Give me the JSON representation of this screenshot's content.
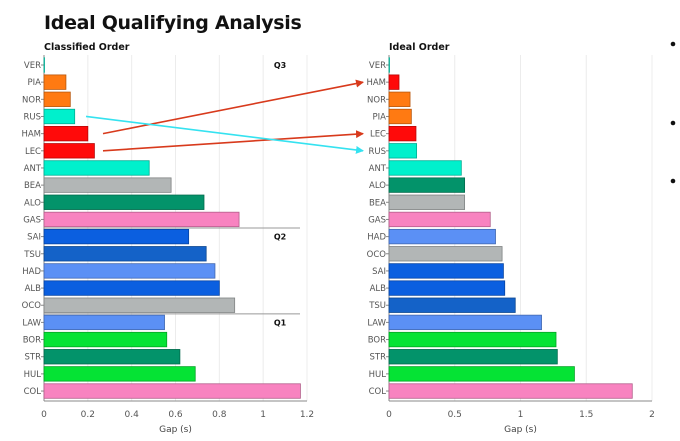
{
  "title": "Ideal Qualifying Analysis",
  "colors": {
    "orange": "#ff7a12",
    "teal": "#00f0cc",
    "red": "#ff0a0a",
    "gray": "#b2b6b6",
    "darkgreen": "#03936a",
    "pink": "#f883c0",
    "blue": "#0b5fe0",
    "darkblue": "#1462c8",
    "lightblue": "#5b90f5",
    "green": "#05e334",
    "arrow_red": "#d83a1c",
    "arrow_cyan": "#35e2f0"
  },
  "chart_data": [
    {
      "type": "bar",
      "orientation": "horizontal",
      "title": "Classified Order",
      "xlabel": "Gap (s)",
      "xlim": [
        0,
        1.2
      ],
      "xticks": [
        "0",
        "0.2",
        "0.4",
        "0.6",
        "0.8",
        "1",
        "1.2"
      ],
      "xtick_values": [
        0,
        0.2,
        0.4,
        0.6,
        0.8,
        1,
        1.2
      ],
      "grid": true,
      "categories": [
        "VER",
        "PIA",
        "NOR",
        "RUS",
        "HAM",
        "LEC",
        "ANT",
        "BEA",
        "ALO",
        "GAS",
        "SAI",
        "TSU",
        "HAD",
        "ALB",
        "OCO",
        "LAW",
        "BOR",
        "STR",
        "HUL",
        "COL"
      ],
      "values": [
        0,
        0.1,
        0.12,
        0.14,
        0.2,
        0.23,
        0.48,
        0.58,
        0.73,
        0.89,
        0.66,
        0.74,
        0.78,
        0.8,
        0.87,
        0.55,
        0.56,
        0.62,
        0.69,
        1.17
      ],
      "bar_colors": [
        "teal",
        "orange",
        "orange",
        "teal",
        "red",
        "red",
        "teal",
        "gray",
        "darkgreen",
        "pink",
        "blue",
        "darkblue",
        "lightblue",
        "blue",
        "gray",
        "lightblue",
        "green",
        "darkgreen",
        "green",
        "pink"
      ],
      "sections": [
        {
          "label": "Q3",
          "start": 0
        },
        {
          "label": "Q2",
          "start": 10
        },
        {
          "label": "Q1",
          "start": 15
        }
      ]
    },
    {
      "type": "bar",
      "orientation": "horizontal",
      "title": "Ideal Order",
      "xlabel": "Gap (s)",
      "xlim": [
        0,
        2
      ],
      "xticks": [
        "0",
        "0.5",
        "1",
        "1.5",
        "2"
      ],
      "xtick_values": [
        0,
        0.5,
        1,
        1.5,
        2
      ],
      "grid": true,
      "categories": [
        "VER",
        "HAM",
        "NOR",
        "PIA",
        "LEC",
        "RUS",
        "ANT",
        "ALO",
        "BEA",
        "GAS",
        "HAD",
        "OCO",
        "SAI",
        "ALB",
        "TSU",
        "LAW",
        "BOR",
        "STR",
        "HUL",
        "COL"
      ],
      "values": [
        0,
        0.076,
        0.16,
        0.17,
        0.205,
        0.21,
        0.55,
        0.575,
        0.575,
        0.77,
        0.81,
        0.86,
        0.87,
        0.88,
        0.96,
        1.16,
        1.27,
        1.28,
        1.41,
        1.85
      ],
      "bar_colors": [
        "teal",
        "red",
        "orange",
        "orange",
        "red",
        "teal",
        "teal",
        "darkgreen",
        "gray",
        "pink",
        "lightblue",
        "gray",
        "blue",
        "blue",
        "darkblue",
        "lightblue",
        "green",
        "darkgreen",
        "green",
        "pink"
      ]
    }
  ],
  "arrows": [
    {
      "driver": "HAM",
      "from_rank": 5,
      "to_rank": 2,
      "color": "arrow_red"
    },
    {
      "driver": "LEC",
      "from_rank": 6,
      "to_rank": 5,
      "color": "arrow_red"
    },
    {
      "driver": "RUS",
      "from_rank": 4,
      "to_rank": 6,
      "color": "arrow_cyan"
    }
  ]
}
